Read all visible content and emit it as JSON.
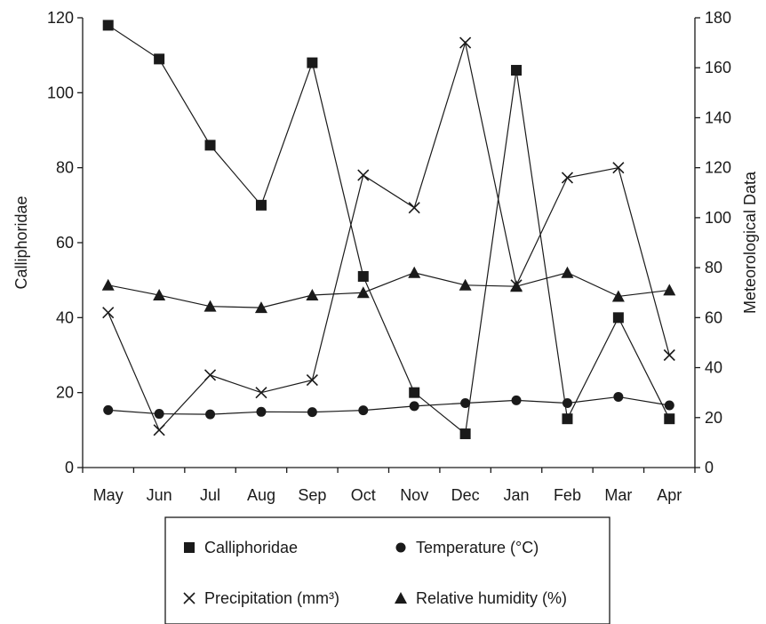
{
  "chart_data": {
    "type": "line",
    "categories": [
      "May",
      "Jun",
      "Jul",
      "Aug",
      "Sep",
      "Oct",
      "Nov",
      "Dec",
      "Jan",
      "Feb",
      "Mar",
      "Apr"
    ],
    "ylabel_left": "Calliphoridae",
    "ylabel_right": "Meteorological Data",
    "ylim_left": [
      0,
      120
    ],
    "yticks_left": [
      0,
      20,
      40,
      60,
      80,
      100,
      120
    ],
    "ylim_right": [
      0,
      180
    ],
    "yticks_right": [
      0,
      20,
      40,
      60,
      80,
      100,
      120,
      140,
      160,
      180
    ],
    "grid": false,
    "legend_position": "bottom",
    "series": [
      {
        "name": "Calliphoridae",
        "axis": "left",
        "marker": "square",
        "values": [
          118,
          109,
          86,
          70,
          108,
          51,
          20,
          9,
          106,
          13,
          40,
          13
        ]
      },
      {
        "name": "Temperature (°C)",
        "axis": "right",
        "marker": "circle",
        "values": [
          23,
          21.5,
          21.3,
          22.3,
          22.2,
          22.9,
          24.6,
          25.8,
          26.9,
          25.8,
          28.3,
          24.9
        ]
      },
      {
        "name": "Precipitation (mm³)",
        "axis": "right",
        "marker": "x",
        "values": [
          62,
          15,
          37,
          30,
          35,
          117,
          104,
          170,
          73,
          116,
          120,
          45
        ]
      },
      {
        "name": "Relative humidity (%)",
        "axis": "right",
        "marker": "triangle",
        "values": [
          73,
          69,
          64.5,
          64,
          69,
          70,
          78,
          73,
          72.5,
          78,
          68.5,
          71
        ]
      }
    ]
  }
}
